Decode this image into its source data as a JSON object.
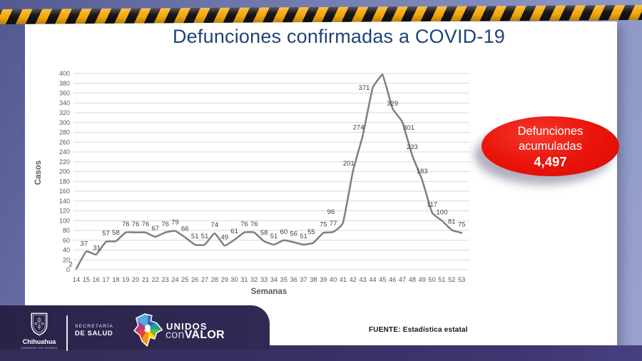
{
  "title": "Defunciones confirmadas a COVID-19",
  "chart_data": {
    "type": "line",
    "x": [
      14,
      15,
      16,
      17,
      18,
      19,
      20,
      21,
      22,
      23,
      24,
      25,
      26,
      27,
      28,
      29,
      30,
      31,
      32,
      33,
      34,
      35,
      36,
      37,
      38,
      39,
      40,
      41,
      42,
      43,
      44,
      45,
      46,
      47,
      48,
      49,
      50,
      51,
      52,
      53
    ],
    "values": [
      2,
      37,
      31,
      57,
      58,
      76,
      76,
      76,
      67,
      76,
      79,
      66,
      51,
      51,
      74,
      49,
      61,
      76,
      76,
      58,
      51,
      60,
      56,
      51,
      55,
      75,
      77,
      96,
      201,
      274,
      371,
      398,
      329,
      301,
      233,
      183,
      117,
      100,
      81,
      75
    ],
    "point_labels": [
      "2",
      "37",
      "31",
      "57",
      "58",
      "76",
      "76",
      "76",
      "67",
      "76",
      "79",
      "66",
      "51",
      "51",
      "74",
      "49",
      "61",
      "76",
      "76",
      "58",
      "51",
      "60",
      "56",
      "51",
      "55",
      "75",
      "77",
      "96",
      "201",
      "274",
      "371",
      "",
      "329",
      "301",
      "233",
      "183",
      "117",
      "100",
      "81",
      "75"
    ],
    "title": "Defunciones confirmadas a COVID-19",
    "xlabel": "Semanas",
    "ylabel": "Casos",
    "ylim": [
      0,
      400
    ],
    "ytick_step": 20,
    "grid": true,
    "legend": false,
    "line_color": "#7f7f7f"
  },
  "badge": {
    "line1": "Defunciones",
    "line2": "acumuladas",
    "value": "4,497",
    "color": "#e81109"
  },
  "source": {
    "label": "FUENTE:",
    "text": "Estadística estatal"
  },
  "footer": {
    "gov_name": "Chihuahua",
    "gov_sub": "GOBIERNO DEL ESTADO",
    "secretary_line1": "SECRETARÍA",
    "secretary_line2": "DE SALUD",
    "brand_line1": "UNIDOS",
    "brand_line2_light": "con",
    "brand_line2_bold": "VALOR"
  }
}
